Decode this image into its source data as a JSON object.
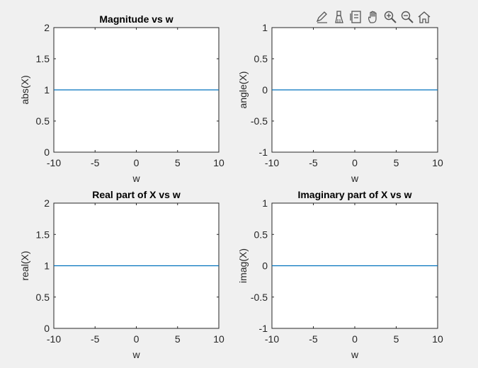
{
  "toolbar": {
    "buttons": [
      {
        "icon": "edit-pen-icon"
      },
      {
        "icon": "brush-icon"
      },
      {
        "icon": "data-tips-icon"
      },
      {
        "icon": "pan-hand-icon"
      },
      {
        "icon": "zoom-in-icon"
      },
      {
        "icon": "zoom-out-icon"
      },
      {
        "icon": "home-icon"
      }
    ]
  },
  "chart_data": [
    {
      "type": "line",
      "title": "Magnitude vs w",
      "xlabel": "w",
      "ylabel": "abs(X)",
      "xlim": [
        -10,
        10
      ],
      "ylim": [
        0,
        2
      ],
      "xticks": [
        -10,
        -5,
        0,
        5,
        10
      ],
      "yticks": [
        0,
        0.5,
        1,
        1.5,
        2
      ],
      "series": [
        {
          "x": [
            -10,
            10
          ],
          "y": [
            1,
            1
          ],
          "color": "#0072bd"
        }
      ]
    },
    {
      "type": "line",
      "title": "",
      "xlabel": "w",
      "ylabel": "angle(X)",
      "xlim": [
        -10,
        10
      ],
      "ylim": [
        -1,
        1
      ],
      "xticks": [
        -10,
        -5,
        0,
        5,
        10
      ],
      "yticks": [
        -1,
        -0.5,
        0,
        0.5,
        1
      ],
      "series": [
        {
          "x": [
            -10,
            10
          ],
          "y": [
            0,
            0
          ],
          "color": "#0072bd"
        }
      ]
    },
    {
      "type": "line",
      "title": "Real part of X vs w",
      "xlabel": "w",
      "ylabel": "real(X)",
      "xlim": [
        -10,
        10
      ],
      "ylim": [
        0,
        2
      ],
      "xticks": [
        -10,
        -5,
        0,
        5,
        10
      ],
      "yticks": [
        0,
        0.5,
        1,
        1.5,
        2
      ],
      "series": [
        {
          "x": [
            -10,
            10
          ],
          "y": [
            1,
            1
          ],
          "color": "#0072bd"
        }
      ]
    },
    {
      "type": "line",
      "title": "Imaginary part of X vs w",
      "xlabel": "w",
      "ylabel": "imag(X)",
      "xlim": [
        -10,
        10
      ],
      "ylim": [
        -1,
        1
      ],
      "xticks": [
        -10,
        -5,
        0,
        5,
        10
      ],
      "yticks": [
        -1,
        -0.5,
        0,
        0.5,
        1
      ],
      "series": [
        {
          "x": [
            -10,
            10
          ],
          "y": [
            0,
            0
          ],
          "color": "#0072bd"
        }
      ]
    }
  ]
}
